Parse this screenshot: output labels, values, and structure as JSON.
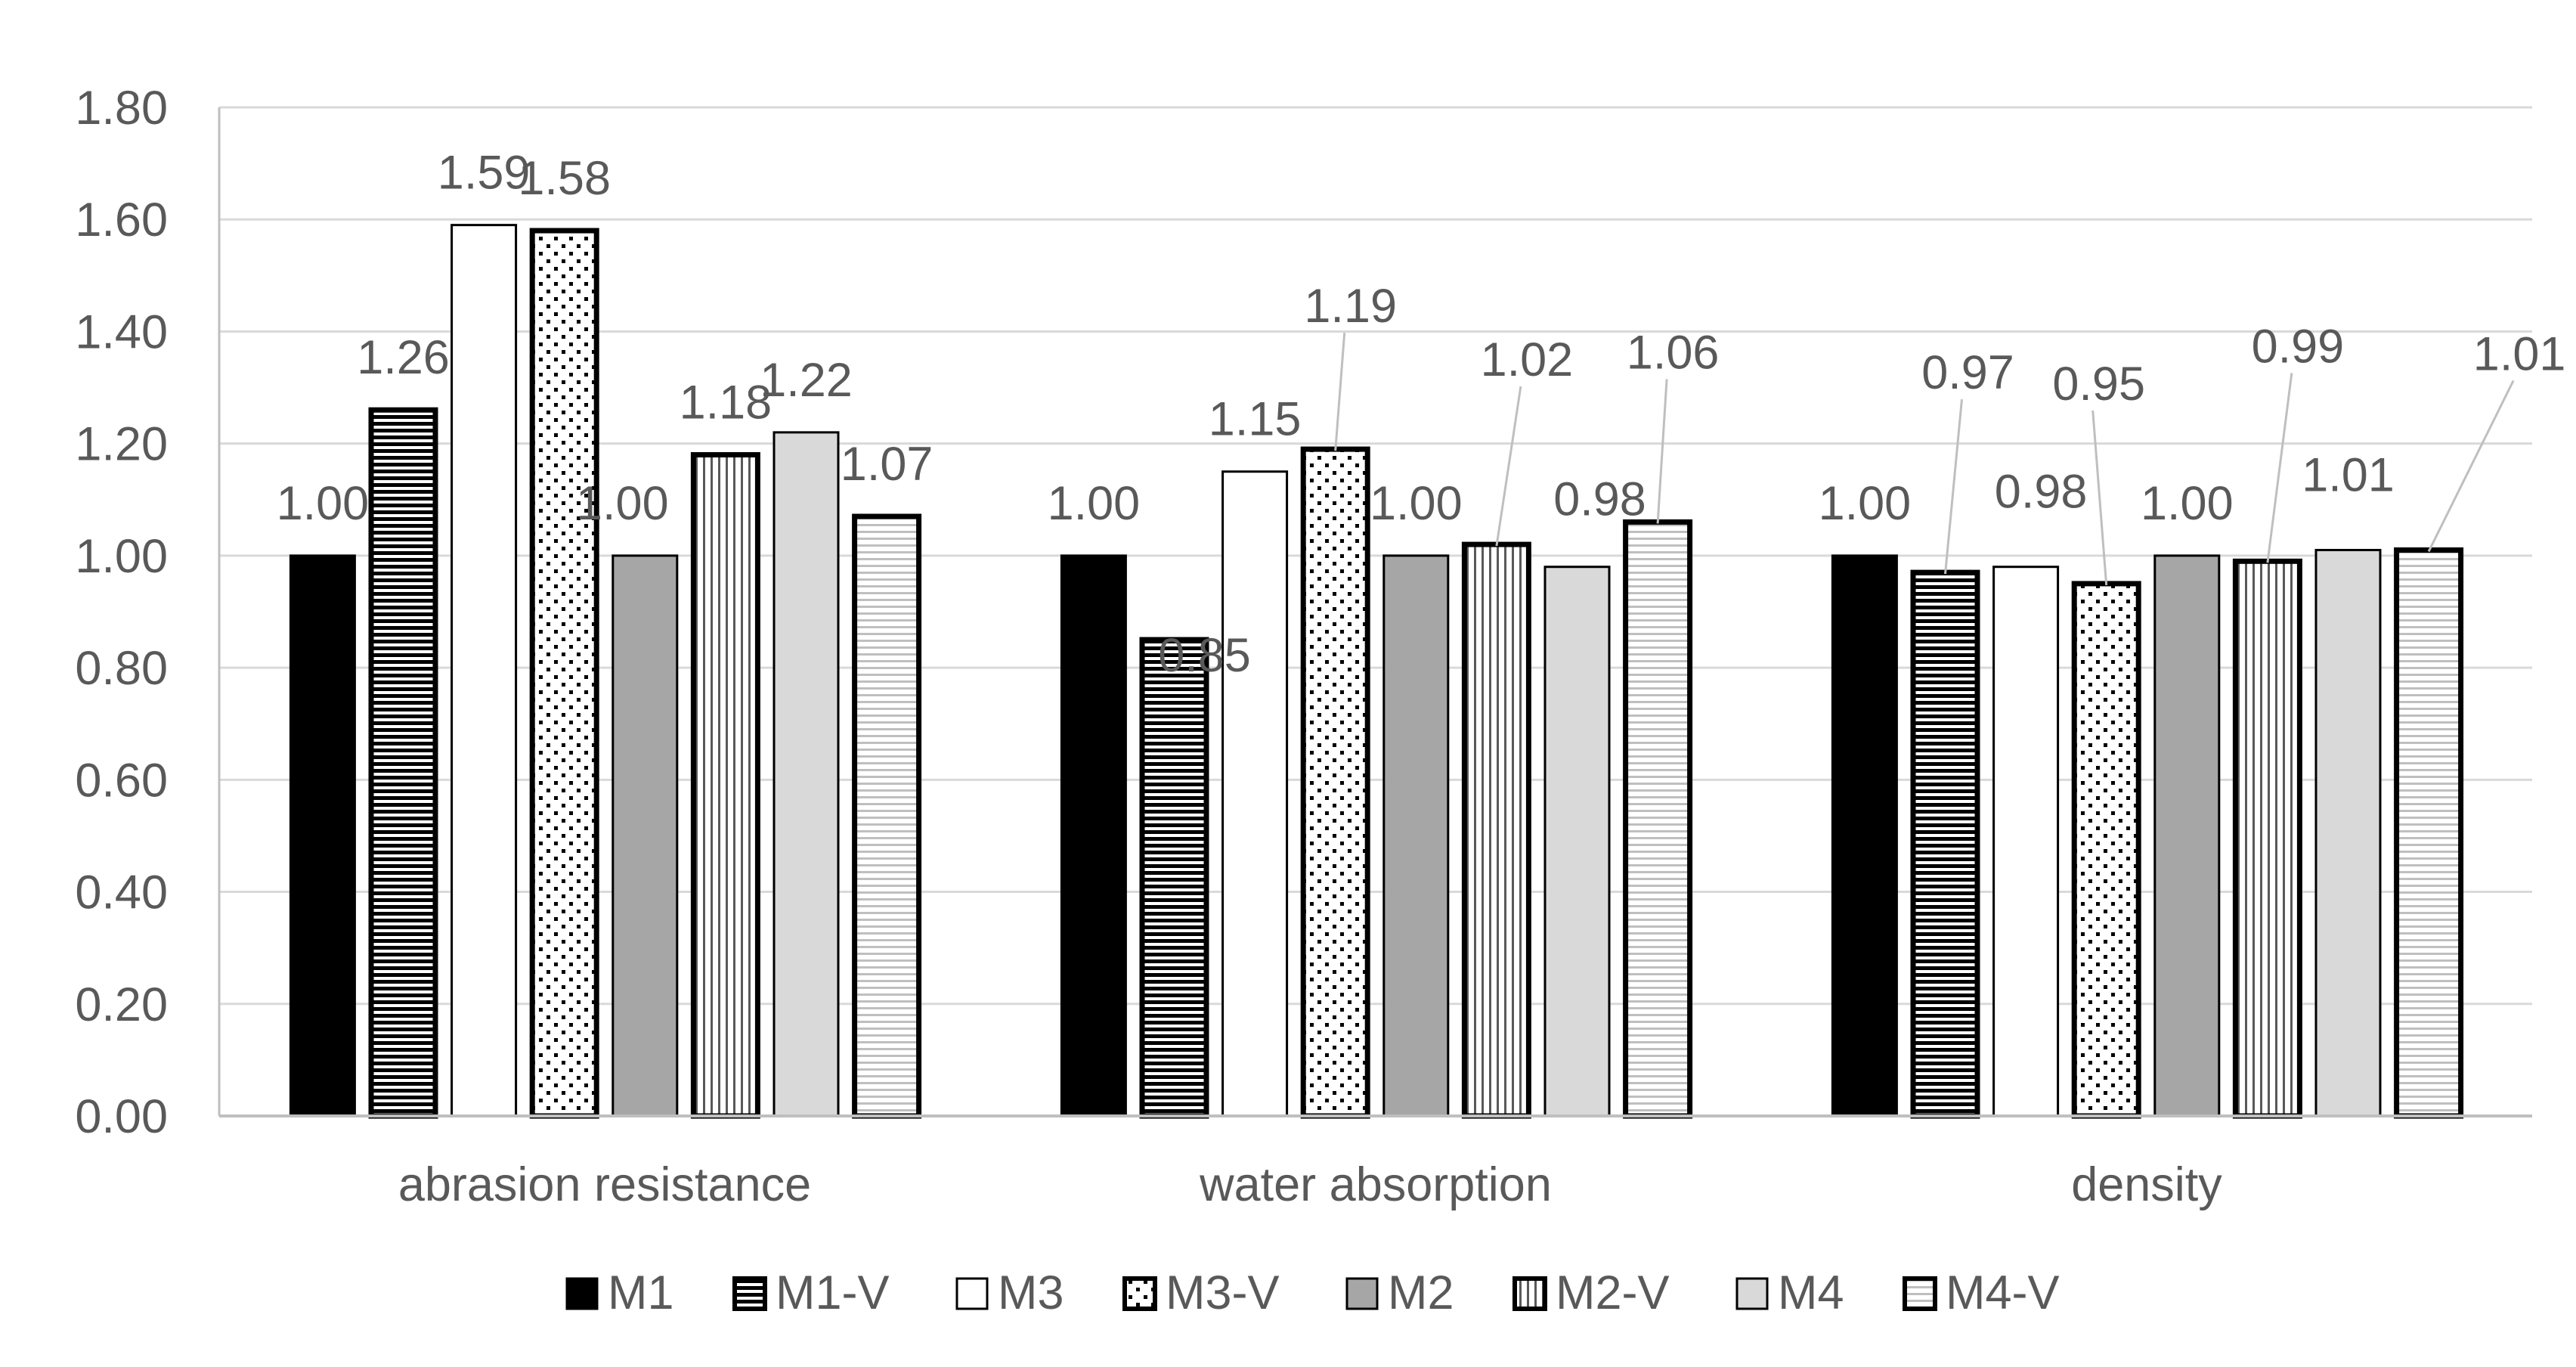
{
  "chart_data": {
    "type": "bar",
    "title": "",
    "xlabel": "",
    "ylabel": "",
    "ylim": [
      0,
      1.8
    ],
    "yticks": [
      "0.00",
      "0.20",
      "0.40",
      "0.60",
      "0.80",
      "1.00",
      "1.20",
      "1.40",
      "1.60",
      "1.80"
    ],
    "grid": true,
    "legend_position": "bottom",
    "categories": [
      "abrasion resistance",
      "water absorption",
      "density"
    ],
    "series": [
      {
        "name": "M1",
        "pattern": "solid-black",
        "values": [
          1.0,
          1.0,
          1.0
        ],
        "labels": [
          "1.00",
          "1.00",
          "1.00"
        ]
      },
      {
        "name": "M1-V",
        "pattern": "horizontal-dense",
        "values": [
          1.26,
          0.85,
          0.97
        ],
        "labels": [
          "1.26",
          "0.85",
          "0.97"
        ]
      },
      {
        "name": "M3",
        "pattern": "white",
        "values": [
          1.59,
          1.15,
          0.98
        ],
        "labels": [
          "1.59",
          "1.15",
          "0.98"
        ]
      },
      {
        "name": "M3-V",
        "pattern": "dots",
        "values": [
          1.58,
          1.19,
          0.95
        ],
        "labels": [
          "1.58",
          "1.19",
          "0.95"
        ]
      },
      {
        "name": "M2",
        "pattern": "solid-gray",
        "values": [
          1.0,
          1.0,
          1.0
        ],
        "labels": [
          "1.00",
          "1.00",
          "1.00"
        ]
      },
      {
        "name": "M2-V",
        "pattern": "vertical",
        "values": [
          1.18,
          1.02,
          0.99
        ],
        "labels": [
          "1.18",
          "1.02",
          "0.99"
        ]
      },
      {
        "name": "M4",
        "pattern": "solid-lightgray",
        "values": [
          1.22,
          0.98,
          1.01
        ],
        "labels": [
          "1.22",
          "0.98",
          "1.01"
        ]
      },
      {
        "name": "M4-V",
        "pattern": "horizontal-light",
        "values": [
          1.07,
          1.06,
          1.01
        ],
        "labels": [
          "1.07",
          "1.06",
          "1.01"
        ]
      }
    ],
    "colors": {
      "text": "#595959",
      "grid": "#d9d9d9",
      "axis": "#bfbfbf",
      "black": "#000000",
      "gray": "#a6a6a6",
      "lightgray": "#d9d9d9",
      "white": "#ffffff"
    }
  }
}
